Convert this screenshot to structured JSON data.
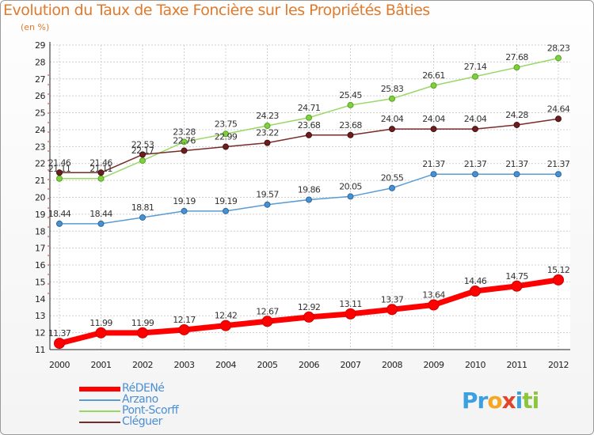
{
  "chart_data": {
    "type": "line",
    "title": "Evolution du Taux de Taxe Foncière sur les Propriétés Bâties",
    "subtitle": "(en %)",
    "xlabel": "",
    "ylabel": "",
    "x": [
      "2000",
      "2001",
      "2002",
      "2003",
      "2004",
      "2005",
      "2006",
      "2007",
      "2008",
      "2009",
      "2010",
      "2011",
      "2012"
    ],
    "ylim": [
      11,
      29
    ],
    "yticks": [
      11,
      12,
      13,
      14,
      15,
      16,
      17,
      18,
      19,
      20,
      21,
      22,
      23,
      24,
      25,
      26,
      27,
      28,
      29
    ],
    "grid": true,
    "legend_position": "bottom-left",
    "series": [
      {
        "name": "RéDENé",
        "color": "#ff0000",
        "values": [
          11.37,
          11.99,
          11.99,
          12.17,
          12.42,
          12.67,
          12.92,
          13.11,
          13.37,
          13.64,
          14.46,
          14.75,
          15.12
        ]
      },
      {
        "name": "Arzano",
        "color": "#5b9bd5",
        "values": [
          18.44,
          18.44,
          18.81,
          19.19,
          19.19,
          19.57,
          19.86,
          20.05,
          20.55,
          21.37,
          21.37,
          21.37,
          21.37
        ]
      },
      {
        "name": "Pont-Scorff",
        "color": "#99d866",
        "values": [
          21.11,
          21.11,
          22.17,
          23.28,
          23.75,
          24.23,
          24.71,
          25.45,
          25.83,
          26.61,
          27.14,
          27.68,
          28.23
        ]
      },
      {
        "name": "Cléguer",
        "color": "#7a2a2a",
        "values": [
          21.46,
          21.46,
          22.53,
          22.76,
          22.99,
          23.22,
          23.68,
          23.68,
          24.04,
          24.04,
          24.04,
          24.28,
          24.64
        ]
      }
    ]
  },
  "logo": {
    "parts": [
      "Pr",
      "o",
      "x",
      "i",
      "ti"
    ],
    "colors": [
      "#3ba0e0",
      "#f5a623",
      "#e0442a",
      "#3ba0e0",
      "#8cc63f"
    ]
  }
}
